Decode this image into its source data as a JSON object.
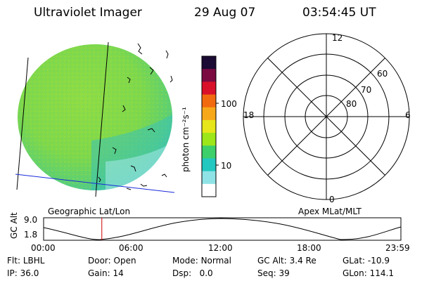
{
  "header": {
    "instrument": "Ultraviolet Imager",
    "date": "29 Aug 07",
    "time": "03:54:45 UT"
  },
  "colorbar": {
    "unit_label": "photon cm⁻²s⁻¹",
    "ticks": [
      "100",
      "10"
    ],
    "colors": [
      "#1b0a33",
      "#7a0a40",
      "#d9102a",
      "#f26a10",
      "#f7a81a",
      "#e6e61a",
      "#9ce61a",
      "#3ccf6a",
      "#22c7c0",
      "#8fe3e6",
      "#ffffff"
    ]
  },
  "image_panel": {
    "caption": "Geographic Lat/Lon",
    "disk_color": "#7fd84a",
    "edge_color": "#3ac2b6",
    "lon_line_color": "#000000",
    "horizon_line_color": "#1a2bd9"
  },
  "polar_plot": {
    "caption": "Apex MLat/MLT",
    "mlt_labels": {
      "top": "12",
      "left": "18",
      "right": "6",
      "bottom": "0"
    },
    "lat_labels": [
      "60",
      "70",
      "80"
    ]
  },
  "altitude_plot": {
    "y_label": "GC Alt",
    "y_ticks": [
      "9.0",
      "1.8"
    ],
    "x_ticks": [
      "00:00",
      "06:00",
      "12:00",
      "18:00",
      "23:59"
    ],
    "marker_color": "#cc0000",
    "marker_time_hours": 3.91
  },
  "status": {
    "row1": [
      {
        "label": "Flt:",
        "value": "LBHL"
      },
      {
        "label": "Door:",
        "value": "Open"
      },
      {
        "label": "Mode:",
        "value": "Normal"
      },
      {
        "label": "GC Alt:",
        "value": "3.4 Re"
      },
      {
        "label": "GLat:",
        "value": "-10.9"
      }
    ],
    "row2": [
      {
        "label": "IP:",
        "value": "36.0"
      },
      {
        "label": "Gain:",
        "value": "14"
      },
      {
        "label": "Dsp:",
        "value": "0.0"
      },
      {
        "label": "Seq:",
        "value": "39"
      },
      {
        "label": "GLon:",
        "value": "114.1"
      }
    ]
  }
}
